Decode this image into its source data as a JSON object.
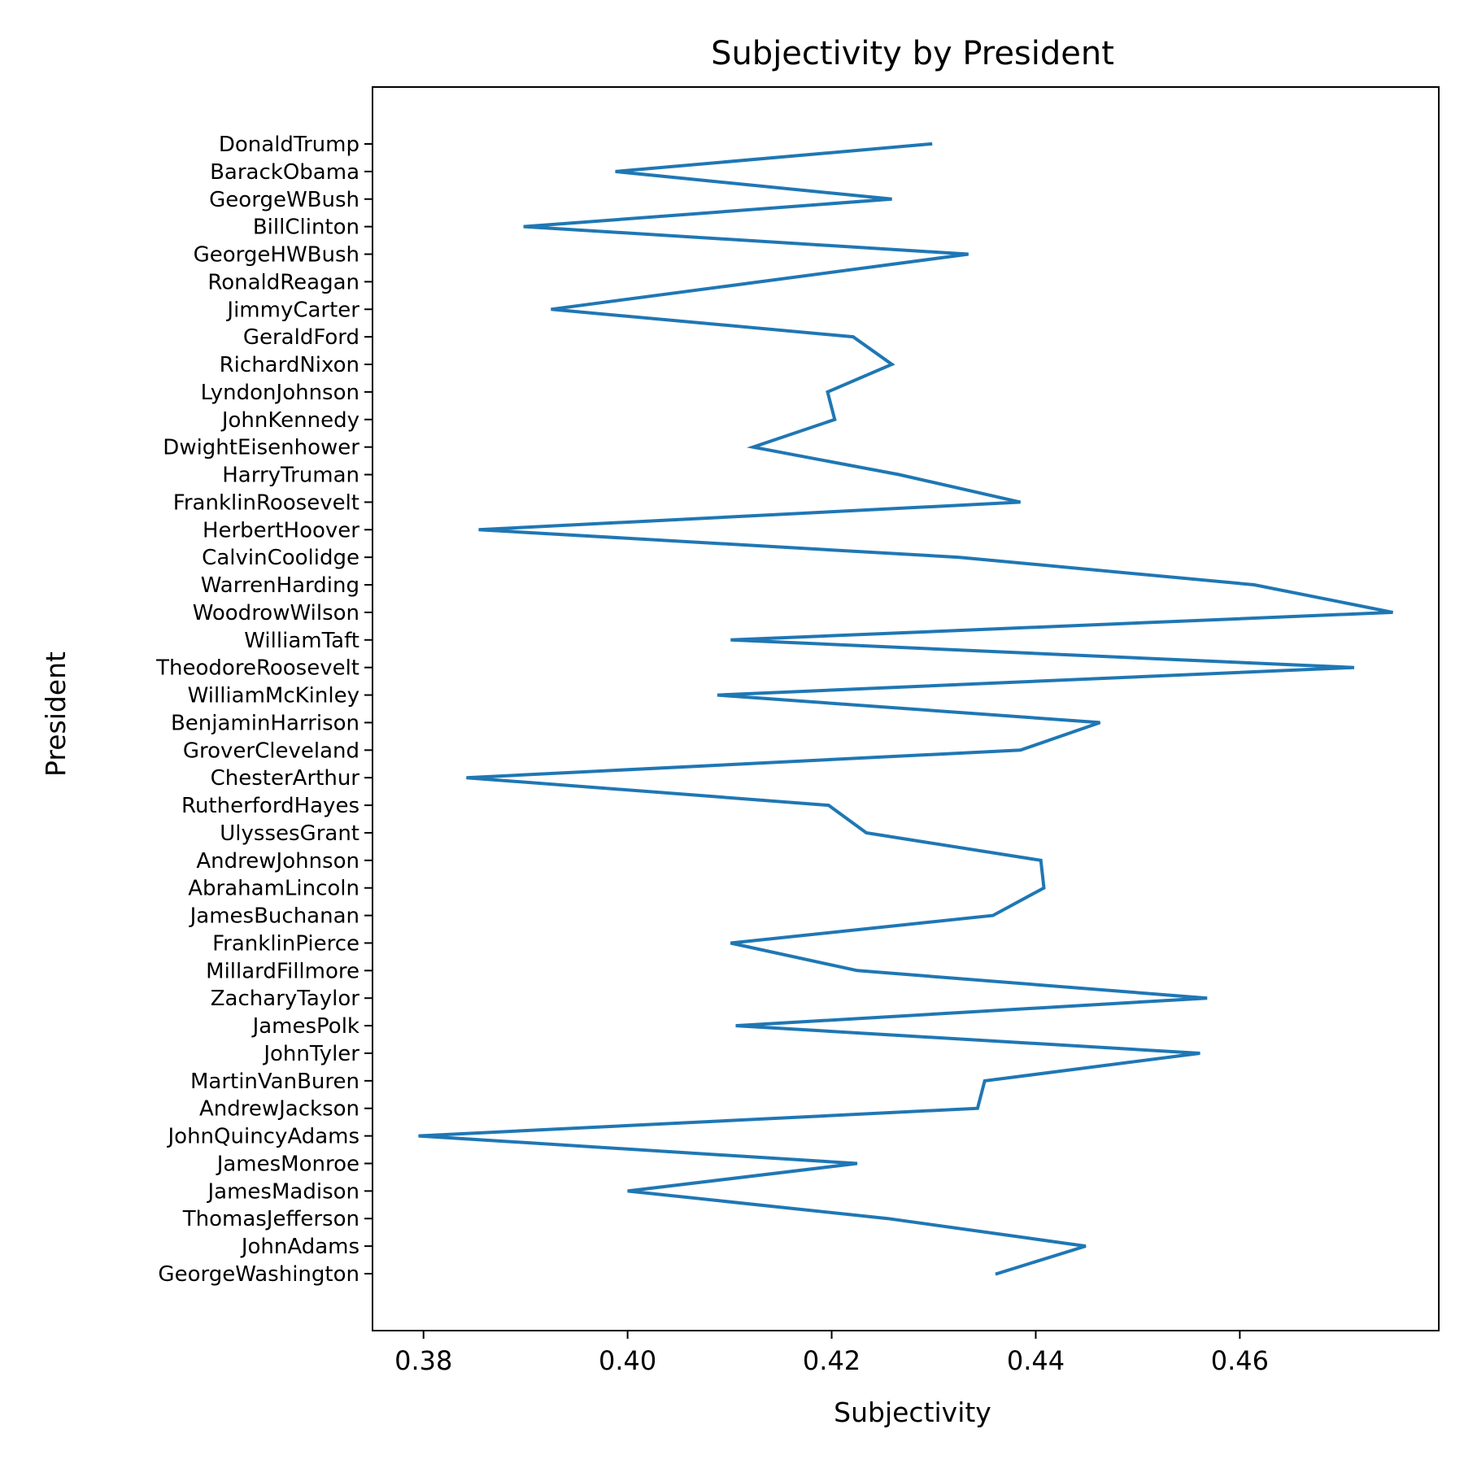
{
  "chart_data": {
    "type": "line",
    "orientation": "horizontal",
    "title": "Subjectivity by President",
    "xlabel": "Subjectivity",
    "ylabel": "President",
    "xlim": [
      0.375,
      0.4795
    ],
    "xticks": [
      0.38,
      0.4,
      0.42,
      0.44,
      0.46
    ],
    "xtick_labels": [
      "0.38",
      "0.40",
      "0.42",
      "0.44",
      "0.46"
    ],
    "grid": false,
    "line_color": "#1f77b4",
    "categories": [
      "GeorgeWashington",
      "JohnAdams",
      "ThomasJefferson",
      "JamesMadison",
      "JamesMonroe",
      "JohnQuincyAdams",
      "AndrewJackson",
      "MartinVanBuren",
      "JohnTyler",
      "JamesPolk",
      "ZacharyTaylor",
      "MillardFillmore",
      "FranklinPierce",
      "JamesBuchanan",
      "AbrahamLincoln",
      "AndrewJohnson",
      "UlyssesGrant",
      "RutherfordHayes",
      "ChesterArthur",
      "GroverCleveland",
      "BenjaminHarrison",
      "WilliamMcKinley",
      "TheodoreRoosevelt",
      "WilliamTaft",
      "WoodrowWilson",
      "WarrenHarding",
      "CalvinCoolidge",
      "HerbertHoover",
      "FranklinRoosevelt",
      "HarryTruman",
      "DwightEisenhower",
      "JohnKennedy",
      "LyndonJohnson",
      "RichardNixon",
      "GeraldFord",
      "JimmyCarter",
      "RonaldReagan",
      "GeorgeHWBush",
      "BillClinton",
      "GeorgeWBush",
      "BarackObama",
      "DonaldTrump"
    ],
    "values": [
      0.4362,
      0.4449,
      0.4255,
      0.4,
      0.4225,
      0.3795,
      0.4343,
      0.435,
      0.4561,
      0.4106,
      0.4568,
      0.4225,
      0.4101,
      0.4358,
      0.4408,
      0.4405,
      0.4234,
      0.4197,
      0.3842,
      0.4385,
      0.4463,
      0.4088,
      0.4712,
      0.4101,
      0.475,
      0.4614,
      0.4325,
      0.3854,
      0.4385,
      0.4266,
      0.4123,
      0.4203,
      0.4196,
      0.4259,
      0.4221,
      0.3925,
      0.413,
      0.4334,
      0.3898,
      0.4259,
      0.3988,
      0.4297
    ]
  }
}
